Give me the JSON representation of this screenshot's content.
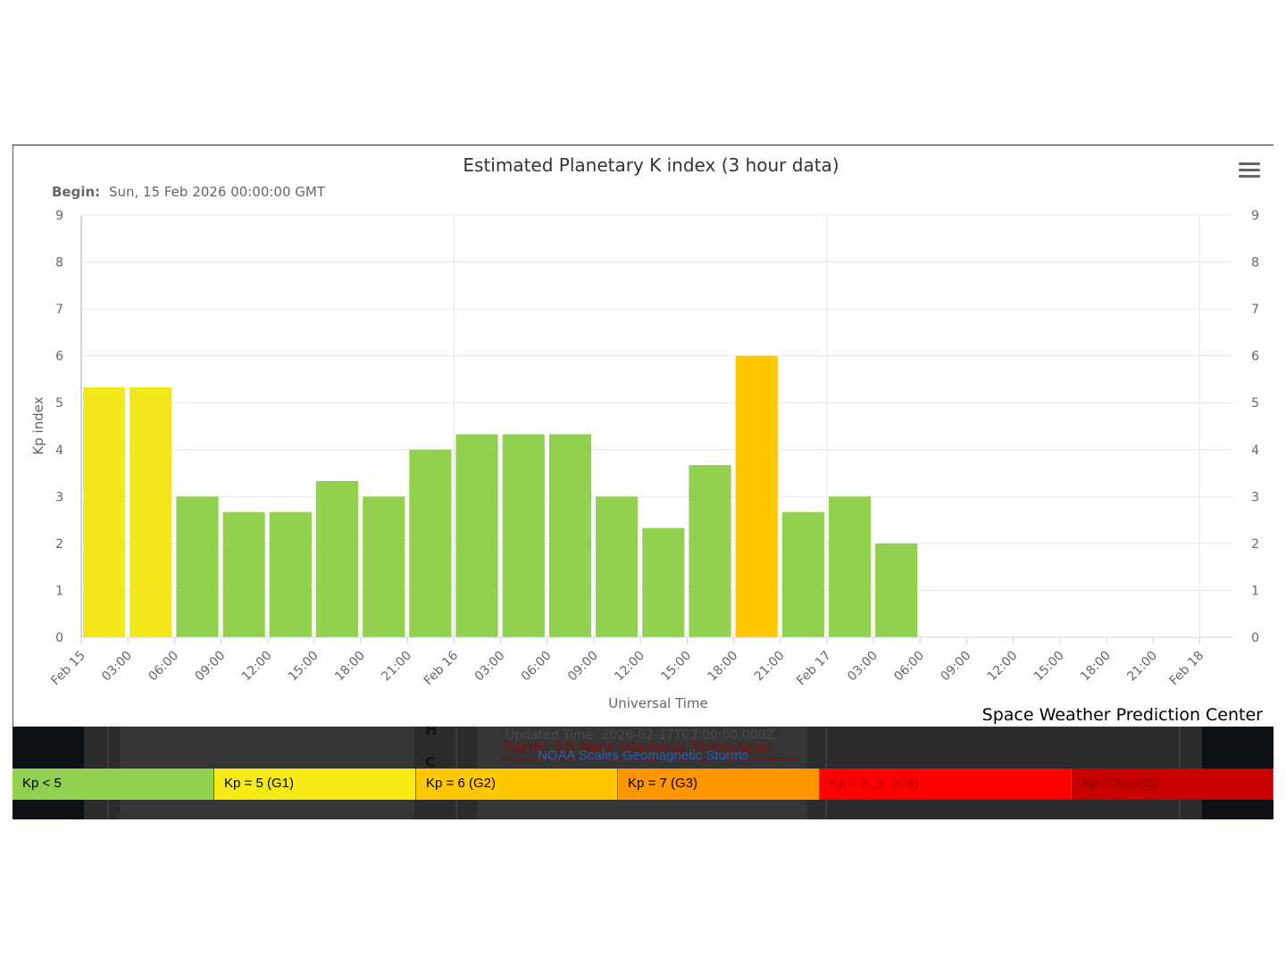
{
  "chart": {
    "title": "Estimated Planetary K index (3 hour data)",
    "subtitle_label": "Begin:",
    "subtitle_value": "Sun, 15 Feb 2026 00:00:00 GMT",
    "credit": "Space Weather Prediction Center",
    "menu_icon": "hamburger-menu-icon"
  },
  "chart_data": {
    "type": "bar",
    "title": "Estimated Planetary K index (3 hour data)",
    "xlabel": "Universal Time",
    "ylabel": "Kp index",
    "ylim": [
      0,
      9
    ],
    "yticks": [
      0,
      1,
      2,
      3,
      4,
      5,
      6,
      7,
      8,
      9
    ],
    "right_axis": true,
    "grid": true,
    "xtick_labels": [
      "Feb 15",
      "03:00",
      "06:00",
      "09:00",
      "12:00",
      "15:00",
      "18:00",
      "21:00",
      "Feb 16",
      "03:00",
      "06:00",
      "09:00",
      "12:00",
      "15:00",
      "18:00",
      "21:00",
      "Feb 17",
      "03:00",
      "06:00",
      "09:00",
      "12:00",
      "15:00",
      "18:00",
      "21:00",
      "Feb 18"
    ],
    "categories": [
      "Feb 15 00:00",
      "Feb 15 03:00",
      "Feb 15 06:00",
      "Feb 15 09:00",
      "Feb 15 12:00",
      "Feb 15 15:00",
      "Feb 15 18:00",
      "Feb 15 21:00",
      "Feb 16 00:00",
      "Feb 16 03:00",
      "Feb 16 06:00",
      "Feb 16 09:00",
      "Feb 16 12:00",
      "Feb 16 15:00",
      "Feb 16 18:00",
      "Feb 16 21:00",
      "Feb 17 00:00",
      "Feb 17 03:00"
    ],
    "values": [
      5.33,
      5.33,
      3.0,
      2.67,
      2.67,
      3.33,
      3.0,
      4.0,
      4.33,
      4.33,
      4.33,
      3.0,
      2.33,
      3.67,
      6.0,
      2.67,
      3.0,
      2.0
    ],
    "colors": [
      "#f4e81b",
      "#f4e81b",
      "#92d050",
      "#92d050",
      "#92d050",
      "#92d050",
      "#92d050",
      "#92d050",
      "#92d050",
      "#92d050",
      "#92d050",
      "#92d050",
      "#92d050",
      "#92d050",
      "#ffc800",
      "#92d050",
      "#92d050",
      "#92d050"
    ]
  },
  "background": {
    "updated_text": "Updated Time: 2026-02-17T03:00:00.000Z",
    "threshold_text": "SWPC 10 MeV Warning Threshold",
    "letter_c": "C",
    "letter_h": "H"
  },
  "scales": {
    "title": "NOAA Scales Geomagnetic Storms",
    "items": [
      {
        "label": "Kp < 5",
        "color": "#92d050",
        "text_color": "#000000"
      },
      {
        "label": "Kp = 5 (G1)",
        "color": "#f6eb14",
        "text_color": "#000000"
      },
      {
        "label": "Kp = 6 (G2)",
        "color": "#ffc800",
        "text_color": "#000000"
      },
      {
        "label": "Kp = 7 (G3)",
        "color": "#ff9600",
        "text_color": "#000000"
      },
      {
        "label": "Kp = 8, 9- (G4)",
        "color": "#ff0000",
        "text_color": "#b00000"
      },
      {
        "label": "Kp = 9o (G5)",
        "color": "#c80000",
        "text_color": "#8a0000"
      }
    ]
  }
}
